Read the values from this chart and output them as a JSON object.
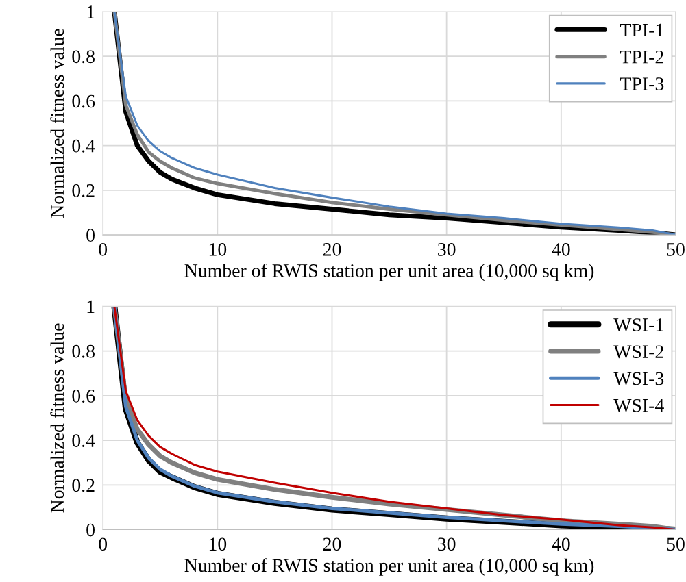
{
  "chart_data": [
    {
      "type": "line",
      "xlabel": "Number of RWIS station per unit area (10,000 sq km)",
      "ylabel": "Normalized fitness value",
      "x": [
        1,
        2,
        3,
        4,
        5,
        6,
        8,
        10,
        15,
        20,
        25,
        30,
        35,
        40,
        45,
        48,
        50
      ],
      "series": [
        {
          "name": "TPI-1",
          "color": "#000000",
          "values": [
            1,
            0.55,
            0.4,
            0.33,
            0.28,
            0.25,
            0.21,
            0.18,
            0.14,
            0.115,
            0.09,
            0.075,
            0.055,
            0.035,
            0.02,
            0.01,
            0
          ]
        },
        {
          "name": "TPI-2",
          "color": "#808080",
          "values": [
            1,
            0.58,
            0.45,
            0.37,
            0.33,
            0.3,
            0.255,
            0.23,
            0.185,
            0.145,
            0.115,
            0.09,
            0.065,
            0.045,
            0.025,
            0.012,
            0
          ]
        },
        {
          "name": "TPI-3",
          "color": "#4f81bd",
          "values": [
            1,
            0.62,
            0.49,
            0.42,
            0.375,
            0.345,
            0.3,
            0.27,
            0.21,
            0.167,
            0.127,
            0.095,
            0.075,
            0.05,
            0.033,
            0.02,
            0
          ]
        }
      ],
      "xlim": [
        0,
        50
      ],
      "xticks": [
        0,
        10,
        20,
        30,
        40,
        50
      ],
      "ylim": [
        0,
        1
      ],
      "yticks": [
        0,
        0.2,
        0.4,
        0.6,
        0.8,
        1
      ],
      "grid": true,
      "legend": "top right",
      "marker": "none",
      "line_style": "solid"
    },
    {
      "type": "line",
      "xlabel": "Number of RWIS station per unit area (10,000 sq km)",
      "ylabel": "Normalized fitness value",
      "x": [
        1,
        2,
        3,
        4,
        5,
        6,
        8,
        10,
        15,
        20,
        25,
        30,
        35,
        40,
        45,
        48,
        50
      ],
      "series": [
        {
          "name": "WSI-1",
          "color": "#000000",
          "values": [
            1,
            0.54,
            0.39,
            0.31,
            0.26,
            0.235,
            0.19,
            0.16,
            0.12,
            0.09,
            0.07,
            0.05,
            0.035,
            0.02,
            0.01,
            0.005,
            0
          ]
        },
        {
          "name": "WSI-2",
          "color": "#808080",
          "values": [
            1,
            0.58,
            0.45,
            0.38,
            0.33,
            0.3,
            0.255,
            0.225,
            0.18,
            0.145,
            0.115,
            0.09,
            0.065,
            0.04,
            0.025,
            0.015,
            0
          ]
        },
        {
          "name": "WSI-3",
          "color": "#4f81bd",
          "values": [
            1,
            0.55,
            0.4,
            0.32,
            0.27,
            0.24,
            0.195,
            0.165,
            0.125,
            0.095,
            0.075,
            0.055,
            0.04,
            0.025,
            0.015,
            0.008,
            0
          ]
        },
        {
          "name": "WSI-4",
          "color": "#c00000",
          "values": [
            1,
            0.62,
            0.49,
            0.42,
            0.37,
            0.34,
            0.29,
            0.26,
            0.21,
            0.165,
            0.125,
            0.095,
            0.065,
            0.045,
            0.02,
            0.01,
            0
          ]
        }
      ],
      "xlim": [
        0,
        50
      ],
      "xticks": [
        0,
        10,
        20,
        30,
        40,
        50
      ],
      "ylim": [
        0,
        1
      ],
      "yticks": [
        0,
        0.2,
        0.4,
        0.6,
        0.8,
        1
      ],
      "grid": true,
      "legend": "top right",
      "marker": "none",
      "line_style": "solid"
    }
  ]
}
